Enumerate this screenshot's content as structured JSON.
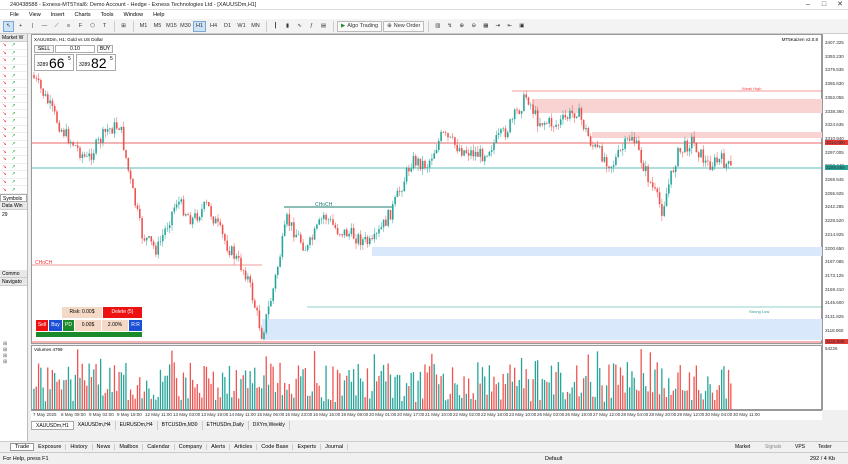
{
  "window": {
    "title": "240438588 - Exness-MT5Trial6: Demo Account - Hedge - Exness Technologies Ltd - [XAUUSDm,H1]"
  },
  "menu": [
    "File",
    "View",
    "Insert",
    "Charts",
    "Tools",
    "Window",
    "Help"
  ],
  "toolbar": {
    "timeframes": [
      "M1",
      "M5",
      "M15",
      "M30",
      "H1",
      "H4",
      "D1",
      "W1",
      "MN"
    ],
    "active_timeframe": "H1",
    "algo_label": "Algo Trading",
    "neworder_label": "New Order"
  },
  "left": {
    "market_watch_label": "Market W",
    "symbols_tab": "Symbols",
    "data_window_label": "Data Win",
    "data_value": "29",
    "common_tab": "Commo",
    "navigator_label": "Navigato"
  },
  "chart": {
    "symbol_info": "XAUUSDm, H1:  Gold vs US Dollar",
    "indicator_name": "MT5Kaizen v2.0.8",
    "one_click": {
      "sell_label": "SELL",
      "buy_label": "BUY",
      "lot": "0.10",
      "sell_prefix": "3289",
      "sell_big": "66",
      "sell_sup": "5",
      "buy_prefix": "3289",
      "buy_big": "82",
      "buy_sup": "5"
    },
    "risk_panel": {
      "risk_label": "Risk: 0.00$",
      "delete_label": "Delete (5)",
      "sell": "Sell",
      "buy": "Buy",
      "pd": "PD",
      "money": "0.00$",
      "percent": "2.00%",
      "mode": "R:R"
    },
    "annotations": {
      "weak_high": "Weak High",
      "strong_low": "Strong Low",
      "choch_left": "CHoCH",
      "choch_mid": "CHoCH",
      "eqh": "EQH",
      "eql": "EQL"
    },
    "volumes_label": "Volumes 4799"
  },
  "price_axis": {
    "ticks": [
      "3407.325",
      "3393.230",
      "3379.535",
      "3365.830",
      "3352.055",
      "3338.360",
      "3324.635",
      "3310.940",
      "3297.005",
      "3283.440",
      "3269.545",
      "3255.925",
      "3242.285",
      "3228.520",
      "3214.925",
      "3200.650",
      "3187.085",
      "3173.125",
      "3159.410",
      "3145.600",
      "3131.825",
      "3118.060"
    ],
    "current_red": "3314.990",
    "current_green": "3289.665",
    "low_red": "3116.888",
    "vol_top": "54226"
  },
  "time_axis": [
    "7 May 2025",
    "8 May 09:00",
    "9 May 02:00",
    "9 May 18:00",
    "12 May 11:00",
    "13 May 03:00",
    "13 May 19:00",
    "14 May 11:00",
    "15 May 06:00",
    "15 May 23:00",
    "16 May 15:00",
    "19 May 08:00",
    "20 May 01:00",
    "20 May 17:00",
    "21 May 10:00",
    "22 May 02:00",
    "22 May 18:00",
    "23 May 10:00",
    "26 May 03:00",
    "26 May 19:00",
    "27 May 12:00",
    "28 May 04:00",
    "28 May 20:00",
    "29 May 12:00",
    "30 May 04:00",
    "30 May 11:00"
  ],
  "chart_tabs": [
    "XAUUSDm,H1",
    "XAUUSDm,H4",
    "EURUSDm,H4",
    "BTCUSDm,M30",
    "ETHUSDm,Daily",
    "DXYm,Weekly"
  ],
  "bottom_tabs": [
    "Trade",
    "Exposure",
    "History",
    "News",
    "Mailbox",
    "Calendar",
    "Company",
    "Alerts",
    "Articles",
    "Code Base",
    "Experts",
    "Journal"
  ],
  "status": {
    "help": "For Help, press F1",
    "profile": "Default",
    "market": "Market",
    "signals": "Signals",
    "vps": "VPS",
    "tester": "Tester",
    "traffic": "292 / 4 Kb"
  },
  "colors": {
    "bull": "#26a69a",
    "bear": "#ef5350",
    "volbull": "#26a69a",
    "volbear": "#ef5350",
    "zone_red": "#f9d2d2",
    "zone_blue": "#d9e8fb"
  }
}
